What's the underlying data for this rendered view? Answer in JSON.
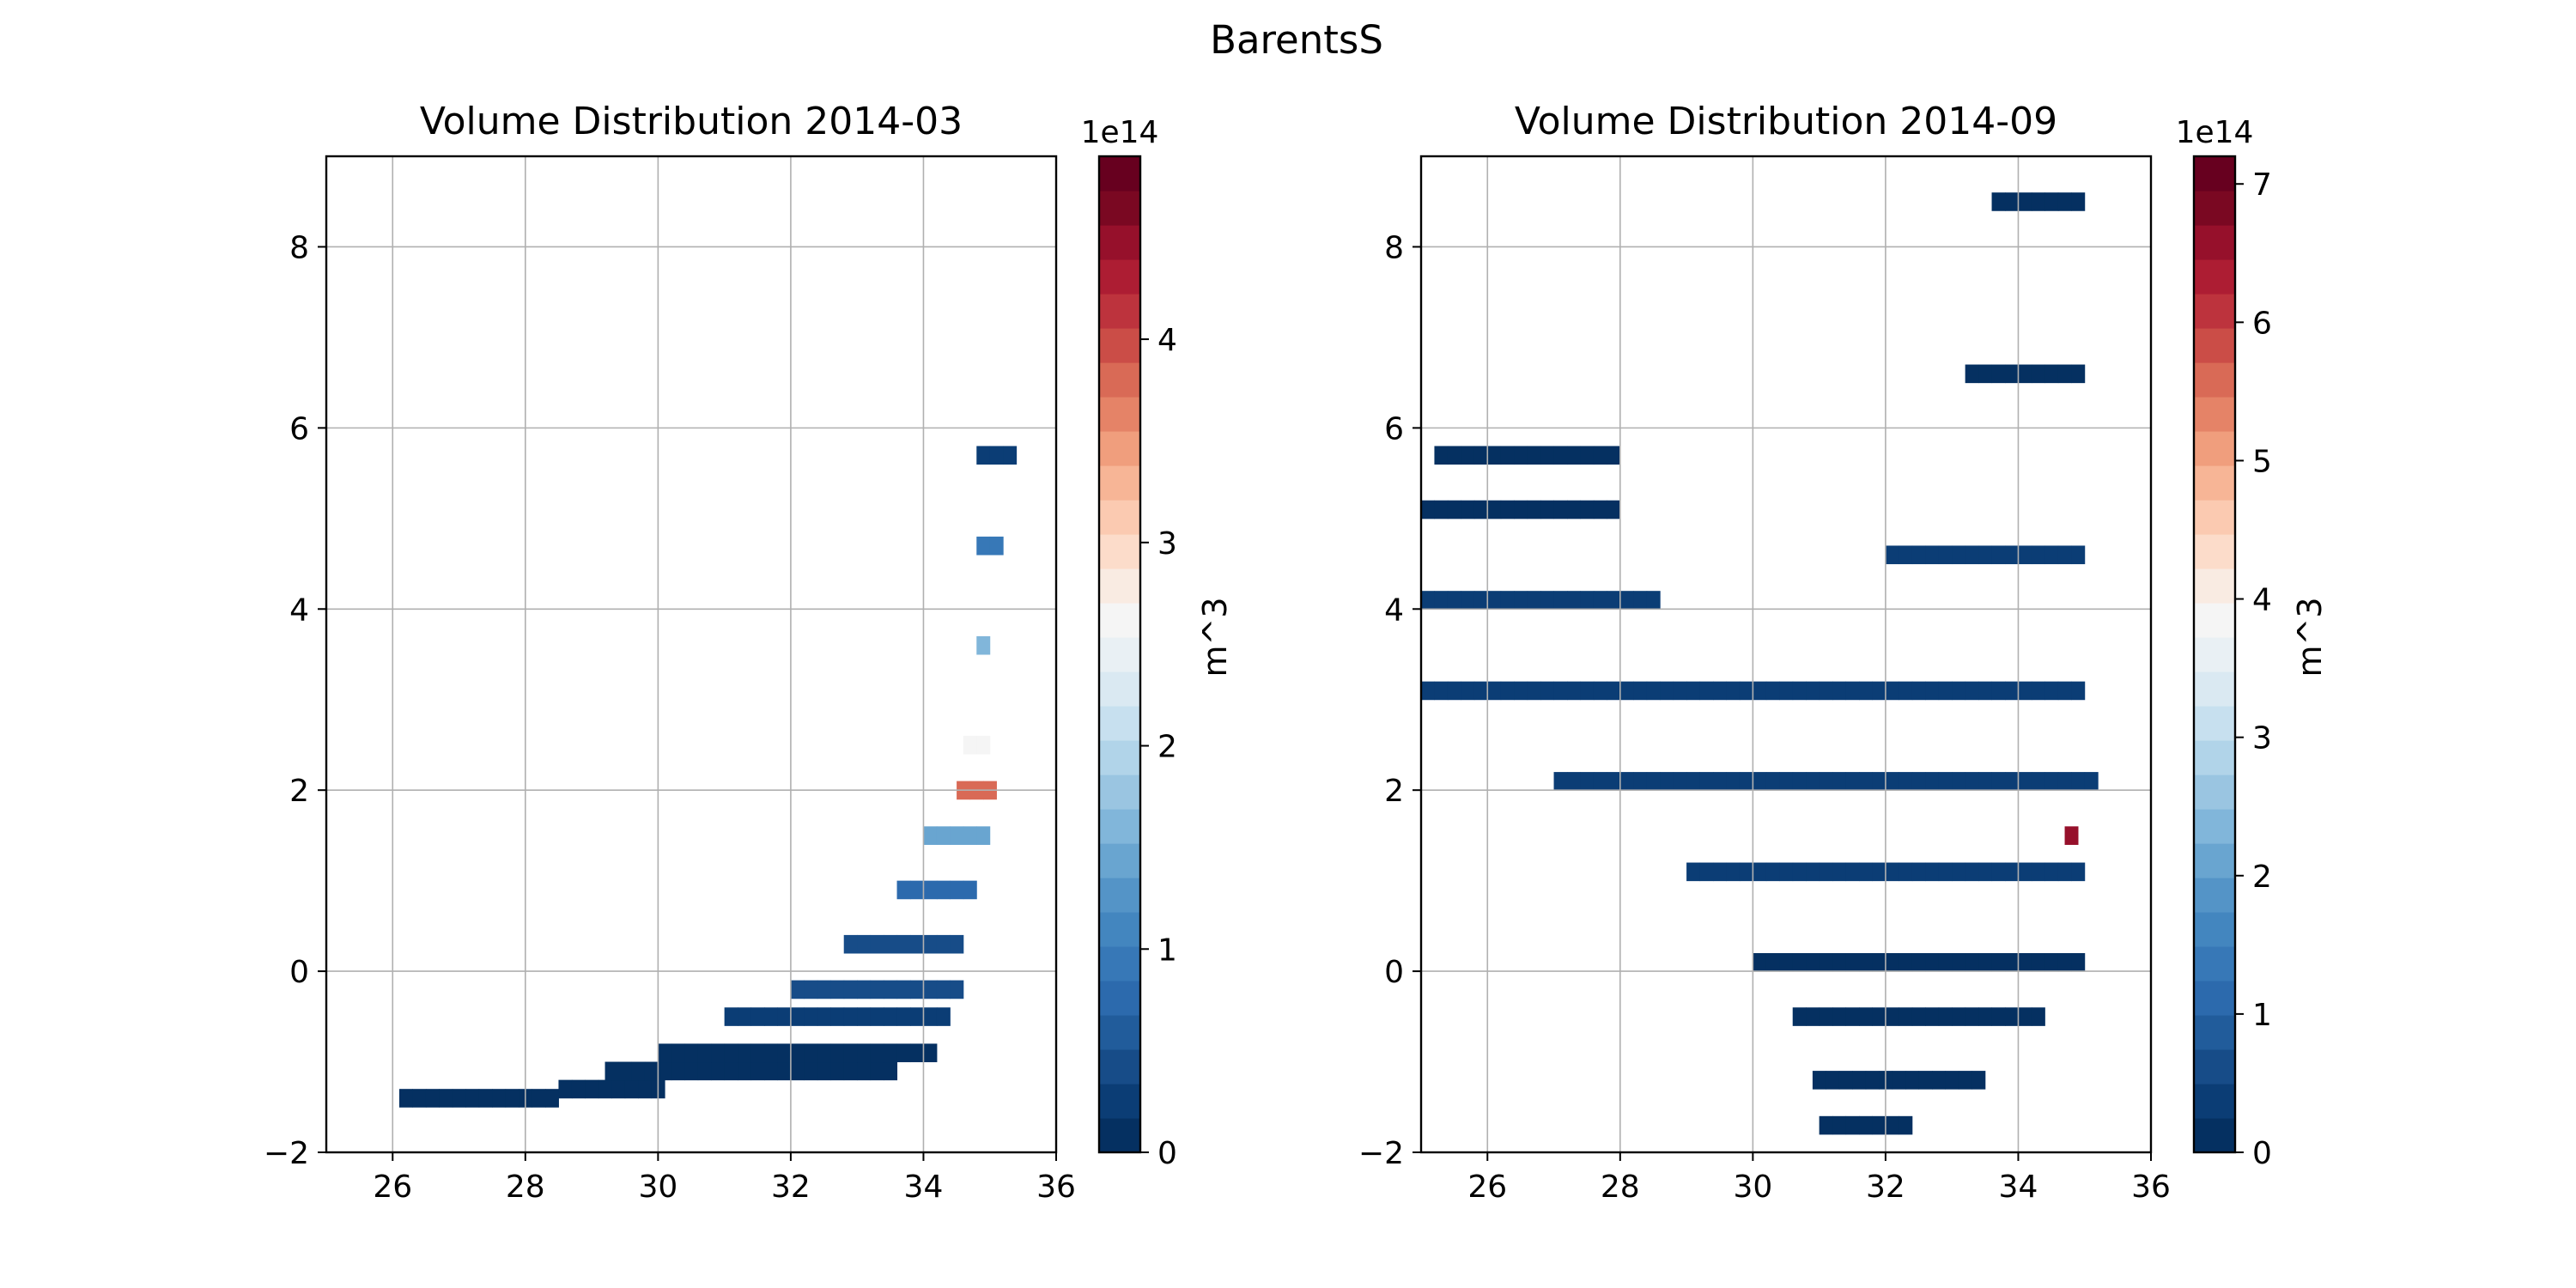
{
  "figure": {
    "suptitle": "BarentsS"
  },
  "colormap": {
    "name": "RdBu_r",
    "levels": [
      "#053061",
      "#0b3d75",
      "#174c88",
      "#215c9b",
      "#2c6aad",
      "#3778b7",
      "#4386bf",
      "#5494c7",
      "#69a5d0",
      "#81b6da",
      "#9ac5e1",
      "#b1d4e9",
      "#c7e0ef",
      "#dae9f2",
      "#e9f0f4",
      "#f5f5f5",
      "#f9ebe2",
      "#fcdcca",
      "#fbcab1",
      "#f7b596",
      "#f09e7d",
      "#e58367",
      "#d96a56",
      "#cb4d47",
      "#bd333d",
      "#ad1d33",
      "#96102b",
      "#7a0822",
      "#67001f"
    ]
  },
  "chart_data": [
    {
      "type": "heatmap",
      "title": "Volume Distribution 2014-03",
      "xlabel": "",
      "ylabel": "",
      "xlim": [
        25,
        36
      ],
      "ylim": [
        -2,
        9
      ],
      "xticks": [
        "26",
        "28",
        "30",
        "32",
        "34",
        "36"
      ],
      "yticks": [
        "−2",
        "0",
        "2",
        "4",
        "6",
        "8"
      ],
      "grid": true,
      "colorbar": {
        "label": "m^3",
        "offset_text": "1e14",
        "min": 0,
        "max": 4.9,
        "ticks": [
          "0",
          "1",
          "2",
          "3",
          "4"
        ]
      },
      "cell_size": {
        "dx": 0.2,
        "dy": 0.2
      },
      "value_range_rows": [
        {
          "y": -1.5,
          "x_from": 26.1,
          "x_to": 28.5,
          "value": 0.02
        },
        {
          "y": -1.4,
          "x_from": 28.5,
          "x_to": 30.0,
          "value": 0.05
        },
        {
          "y": -1.2,
          "x_from": 29.2,
          "x_to": 33.5,
          "value": 0.08
        },
        {
          "y": -1.0,
          "x_from": 30.0,
          "x_to": 34.2,
          "value": 0.15
        },
        {
          "y": -0.6,
          "x_from": 31.0,
          "x_to": 34.4,
          "value": 0.25
        },
        {
          "y": -0.3,
          "x_from": 32.0,
          "x_to": 34.6,
          "value": 0.4
        },
        {
          "y": 0.2,
          "x_from": 32.8,
          "x_to": 34.6,
          "value": 0.5
        },
        {
          "y": 0.8,
          "x_from": 33.6,
          "x_to": 34.8,
          "value": 0.8
        },
        {
          "y": 1.4,
          "x_from": 34.0,
          "x_to": 34.9,
          "value": 1.5
        },
        {
          "y": 1.9,
          "x_from": 34.5,
          "x_to": 35.0,
          "value": 3.8
        },
        {
          "y": 2.4,
          "x_from": 34.6,
          "x_to": 35.0,
          "value": 2.6
        },
        {
          "y": 3.5,
          "x_from": 34.8,
          "x_to": 35.0,
          "value": 1.6
        },
        {
          "y": 4.6,
          "x_from": 34.8,
          "x_to": 35.1,
          "value": 0.9
        },
        {
          "y": 5.6,
          "x_from": 34.8,
          "x_to": 35.3,
          "value": 0.3
        }
      ]
    },
    {
      "type": "heatmap",
      "title": "Volume Distribution 2014-09",
      "xlabel": "",
      "ylabel": "",
      "xlim": [
        25,
        36
      ],
      "ylim": [
        -2,
        9
      ],
      "xticks": [
        "26",
        "28",
        "30",
        "32",
        "34",
        "36"
      ],
      "yticks": [
        "−2",
        "0",
        "2",
        "4",
        "6",
        "8"
      ],
      "grid": true,
      "colorbar": {
        "label": "m^3",
        "offset_text": "1e14",
        "min": 0,
        "max": 7.2,
        "ticks": [
          "0",
          "1",
          "2",
          "3",
          "4",
          "5",
          "6",
          "7"
        ]
      },
      "cell_size": {
        "dx": 0.2,
        "dy": 0.2
      },
      "value_range_rows": [
        {
          "y": -1.8,
          "x_from": 31.0,
          "x_to": 32.4,
          "value": 0.05
        },
        {
          "y": -1.3,
          "x_from": 30.9,
          "x_to": 33.5,
          "value": 0.05
        },
        {
          "y": -0.6,
          "x_from": 30.6,
          "x_to": 34.4,
          "value": 0.1
        },
        {
          "y": 0.0,
          "x_from": 30.0,
          "x_to": 35.0,
          "value": 0.2
        },
        {
          "y": 1.0,
          "x_from": 29.0,
          "x_to": 35.0,
          "value": 0.3
        },
        {
          "y": 2.0,
          "x_from": 27.0,
          "x_to": 35.1,
          "value": 0.4
        },
        {
          "y": 3.0,
          "x_from": 25.0,
          "x_to": 35.0,
          "value": 0.4
        },
        {
          "y": 4.0,
          "x_from": 25.0,
          "x_to": 28.5,
          "value": 0.3
        },
        {
          "y": 5.0,
          "x_from": 25.0,
          "x_to": 28.0,
          "value": 0.2
        },
        {
          "y": 5.6,
          "x_from": 25.2,
          "x_to": 28.0,
          "value": 0.1
        },
        {
          "y": 4.5,
          "x_from": 32.0,
          "x_to": 35.0,
          "value": 0.3
        },
        {
          "y": 6.5,
          "x_from": 33.2,
          "x_to": 35.0,
          "value": 0.2
        },
        {
          "y": 8.4,
          "x_from": 33.6,
          "x_to": 35.0,
          "value": 0.1
        },
        {
          "y": 1.4,
          "x_from": 34.7,
          "x_to": 34.9,
          "value": 6.5
        }
      ]
    }
  ]
}
